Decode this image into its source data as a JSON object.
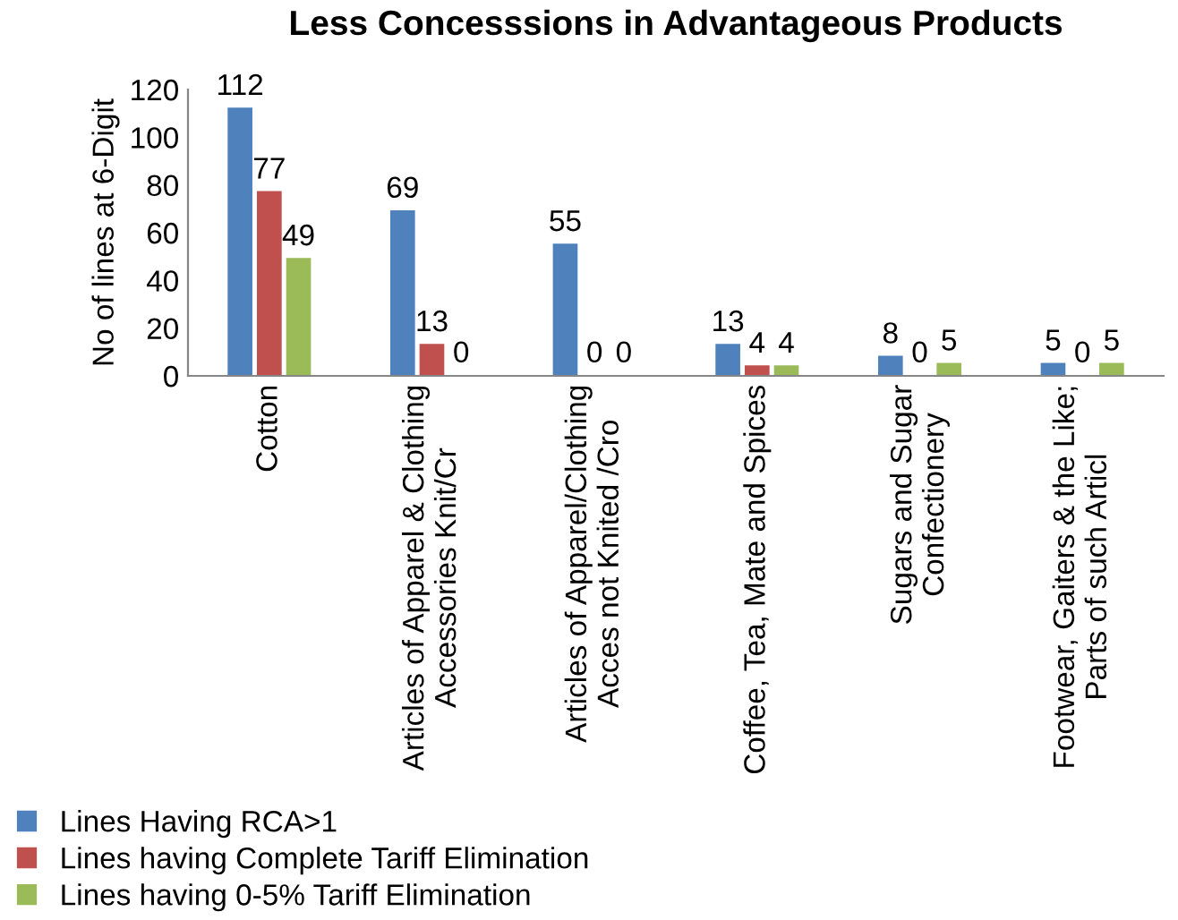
{
  "chart_data": {
    "type": "bar",
    "title": "Less Concesssions in Advantageous Products",
    "ylabel": "No of lines at 6-Digit",
    "categories": [
      "Cotton",
      "Articles of Apparel & Clothing\nAccessories Knit/Cr",
      "Articles of Apparel/Clothing\nAcces not Knited /Cro",
      "Coffee, Tea, Mate and Spices",
      "Sugars and Sugar\nConfectionery",
      "Footwear, Gaiters & the Like;\nParts of such Articl"
    ],
    "series": [
      {
        "name": "Lines Having RCA>1",
        "color": "#4f81bd",
        "values": [
          112,
          69,
          55,
          13,
          8,
          5
        ]
      },
      {
        "name": "Lines having Complete Tariff Elimination",
        "color": "#c0504d",
        "values": [
          77,
          13,
          0,
          4,
          0,
          0
        ]
      },
      {
        "name": "Lines having 0-5% Tariff Elimination",
        "color": "#9bbb59",
        "values": [
          49,
          0,
          0,
          4,
          5,
          5
        ]
      }
    ],
    "ylim": [
      0,
      120
    ],
    "yticks": [
      0,
      20,
      40,
      60,
      80,
      100,
      120
    ],
    "data_labels": true,
    "legend": "bottom left"
  }
}
